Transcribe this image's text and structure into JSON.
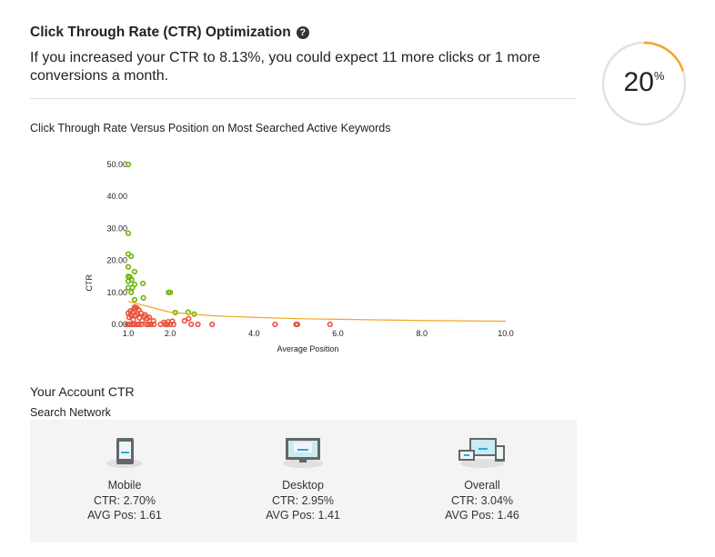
{
  "header": {
    "title": "Click Through Rate (CTR) Optimization",
    "help_icon": "question-circle-icon",
    "subtitle": "If you increased your CTR to 8.13%, you could expect 11 more clicks or 1 more conversions a month."
  },
  "gauge": {
    "value": "20",
    "unit": "%",
    "percent": 20,
    "color": "#f5a623",
    "track_color": "#e2e2e2"
  },
  "chart_data": {
    "type": "scatter",
    "title": "Click Through Rate Versus Position on Most Searched Active Keywords",
    "xlabel": "Average Position",
    "ylabel": "CTR",
    "xlim": [
      1,
      10
    ],
    "ylim": [
      0,
      50
    ],
    "xticks": [
      "1.0",
      "2.0",
      "4.0",
      "6.0",
      "8.0",
      "10.0"
    ],
    "yticks": [
      "0.00",
      "10.00",
      "20.00",
      "30.00",
      "40.00",
      "50.00"
    ],
    "colors": {
      "above": "#6ab700",
      "below": "#e8543f",
      "trend": "#f5a623"
    },
    "series": [
      {
        "key": "above",
        "points": [
          [
            1.0,
            50
          ],
          [
            1.0,
            28.5
          ],
          [
            1.0,
            22
          ],
          [
            1.07,
            21.3
          ],
          [
            1.0,
            18
          ],
          [
            1.15,
            16.5
          ],
          [
            1.0,
            15
          ],
          [
            1.04,
            14.8
          ],
          [
            1.08,
            14
          ],
          [
            1.0,
            13.5
          ],
          [
            1.15,
            12.5
          ],
          [
            1.1,
            11.5
          ],
          [
            1.0,
            11.5
          ],
          [
            1.35,
            12.8
          ],
          [
            1.07,
            10
          ],
          [
            1.96,
            10
          ],
          [
            2.0,
            10
          ],
          [
            1.15,
            7.7
          ],
          [
            1.36,
            8.3
          ],
          [
            2.12,
            3.7
          ],
          [
            2.43,
            3.8
          ],
          [
            2.57,
            3.2
          ]
        ]
      },
      {
        "key": "below",
        "points": [
          [
            0.98,
            0
          ],
          [
            1.03,
            0
          ],
          [
            1.09,
            0
          ],
          [
            1.14,
            0
          ],
          [
            1.2,
            0
          ],
          [
            1.25,
            0
          ],
          [
            1.31,
            0
          ],
          [
            1.43,
            0
          ],
          [
            1.48,
            0
          ],
          [
            1.54,
            0
          ],
          [
            1.61,
            0
          ],
          [
            1.77,
            0
          ],
          [
            1.88,
            0
          ],
          [
            1.93,
            0
          ],
          [
            2.0,
            0
          ],
          [
            2.08,
            0
          ],
          [
            2.5,
            0
          ],
          [
            2.66,
            0
          ],
          [
            3.0,
            0
          ],
          [
            4.5,
            0
          ],
          [
            5.0,
            0
          ],
          [
            5.03,
            0
          ],
          [
            5.81,
            0
          ],
          [
            1.0,
            3.5
          ],
          [
            1.05,
            4.2
          ],
          [
            1.1,
            3.8
          ],
          [
            1.15,
            5.4
          ],
          [
            1.2,
            5.2
          ],
          [
            1.02,
            2.2
          ],
          [
            1.08,
            2.6
          ],
          [
            1.12,
            1.5
          ],
          [
            1.18,
            2.8
          ],
          [
            1.22,
            3.3
          ],
          [
            1.27,
            2.0
          ],
          [
            1.3,
            3.6
          ],
          [
            1.33,
            1.2
          ],
          [
            1.38,
            2.4
          ],
          [
            1.4,
            3.0
          ],
          [
            1.45,
            1.8
          ],
          [
            1.5,
            2.2
          ],
          [
            1.25,
            4.5
          ],
          [
            1.6,
            1.1
          ],
          [
            1.85,
            0.6
          ],
          [
            2.34,
            1.1
          ],
          [
            2.44,
            1.8
          ],
          [
            1.95,
            0.8
          ],
          [
            2.05,
            1.0
          ],
          [
            1.14,
            4.8
          ],
          [
            1.06,
            3.0
          ]
        ]
      }
    ],
    "trend": [
      [
        1,
        7.2
      ],
      [
        1.5,
        5.5
      ],
      [
        2,
        3.8
      ],
      [
        3,
        2.7
      ],
      [
        4,
        2.2
      ],
      [
        5,
        1.8
      ],
      [
        6,
        1.6
      ],
      [
        8,
        1.2
      ],
      [
        10,
        1.0
      ]
    ]
  },
  "account": {
    "title": "Your Account CTR",
    "network": "Search Network",
    "devices": [
      {
        "icon": "mobile-icon",
        "name": "Mobile",
        "ctr": "CTR: 2.70%",
        "pos": "AVG Pos: 1.61"
      },
      {
        "icon": "desktop-icon",
        "name": "Desktop",
        "ctr": "CTR: 2.95%",
        "pos": "AVG Pos: 1.41"
      },
      {
        "icon": "multi-device-icon",
        "name": "Overall",
        "ctr": "CTR: 3.04%",
        "pos": "AVG Pos: 1.46"
      }
    ]
  }
}
